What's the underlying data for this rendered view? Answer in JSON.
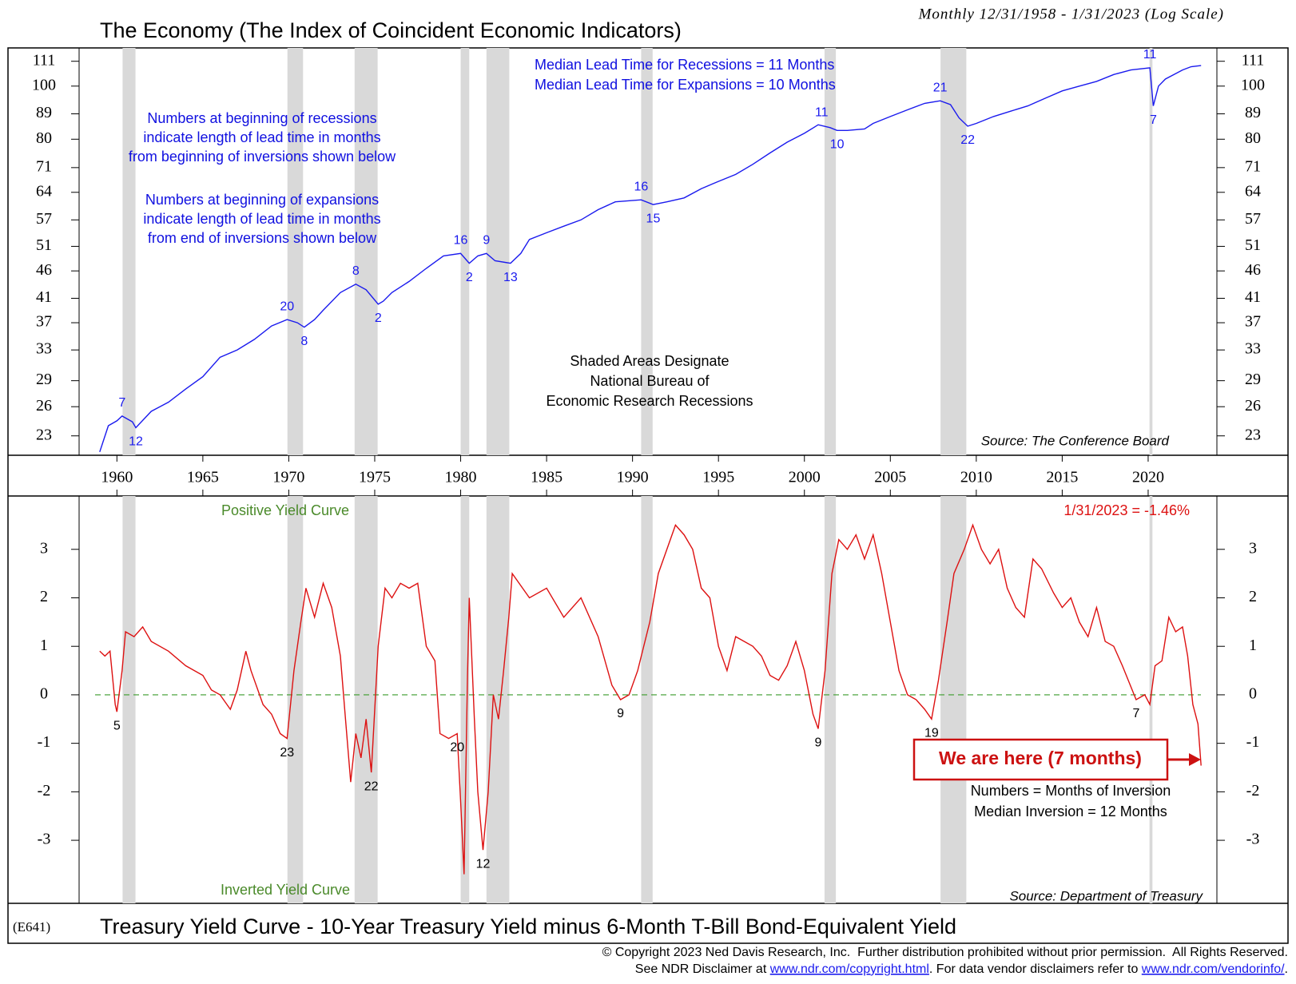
{
  "chart_data": [
    {
      "type": "line",
      "title": "The Economy (The Index of Coincident Economic Indicators)",
      "subtitle": "Monthly 12/31/1958 - 1/31/2023 (Log Scale)",
      "color": "#1a1aee",
      "log_scale": true,
      "x": [
        1959.0,
        1959.5,
        1960.0,
        1960.3,
        1960.9,
        1961.1,
        1962,
        1963,
        1964,
        1965,
        1966,
        1967,
        1968,
        1969,
        1969.9,
        1970.5,
        1970.9,
        1971.5,
        1972,
        1973,
        1973.9,
        1974.5,
        1975.2,
        1975.5,
        1976,
        1977,
        1978,
        1979,
        1980.0,
        1980.5,
        1981,
        1981.5,
        1982,
        1982.9,
        1983.5,
        1984,
        1985,
        1986,
        1987,
        1988,
        1989,
        1990.5,
        1991.2,
        1992,
        1993,
        1994,
        1995,
        1996,
        1997,
        1998,
        1999,
        2000,
        2000.8,
        2001.5,
        2001.9,
        2002.5,
        2003.5,
        2004,
        2005,
        2006,
        2007,
        2007.9,
        2008.5,
        2009.0,
        2009.5,
        2010,
        2011,
        2012,
        2013,
        2014,
        2015,
        2016,
        2017,
        2018,
        2019,
        2020.1,
        2020.3,
        2020.6,
        2021,
        2022,
        2022.5,
        2023.08
      ],
      "values": [
        21.5,
        24,
        24.5,
        25,
        24.4,
        23.8,
        25.5,
        26.5,
        28,
        29.5,
        32,
        33,
        34.5,
        36.5,
        37.5,
        37,
        36.3,
        37.5,
        39,
        42,
        43.5,
        42.5,
        40,
        40.5,
        42,
        44,
        46.5,
        49,
        49.5,
        47.5,
        49,
        49.5,
        48,
        47.5,
        49.5,
        52.5,
        54,
        55.5,
        57,
        59.5,
        61.5,
        62,
        60.8,
        61.5,
        62.5,
        65,
        67,
        69,
        72,
        75.5,
        79,
        82,
        85,
        84,
        83,
        83,
        83.5,
        85.5,
        88,
        90.5,
        93,
        94,
        92.5,
        87.5,
        84.5,
        85.5,
        88,
        90,
        92,
        95,
        98,
        100,
        102,
        105,
        107,
        108,
        92,
        100,
        103,
        107,
        108.5,
        109
      ],
      "xlim": [
        1957.8,
        2024
      ],
      "xticks": [
        1960,
        1965,
        1970,
        1975,
        1980,
        1985,
        1990,
        1995,
        2000,
        2005,
        2010,
        2015,
        2020
      ],
      "ylim": [
        21.2,
        117.4
      ],
      "yticks": [
        23,
        26,
        29,
        33,
        37,
        41,
        46,
        51,
        57,
        64,
        71,
        80,
        89,
        100,
        111
      ],
      "recessions": [
        [
          1960.33,
          1961.08
        ],
        [
          1969.92,
          1970.83
        ],
        [
          1973.83,
          1975.17
        ],
        [
          1980.0,
          1980.5
        ],
        [
          1981.5,
          1982.83
        ],
        [
          1990.5,
          1991.17
        ],
        [
          2001.17,
          2001.83
        ],
        [
          2007.92,
          2009.42
        ],
        [
          2020.08,
          2020.25
        ]
      ],
      "recession_color": "#d9d9d9",
      "annotations": [
        {
          "label": "7",
          "x": 1960.3,
          "pos": "above"
        },
        {
          "label": "12",
          "x": 1961.1,
          "pos": "below"
        },
        {
          "label": "20",
          "x": 1969.9,
          "pos": "above"
        },
        {
          "label": "8",
          "x": 1970.9,
          "pos": "below"
        },
        {
          "label": "8",
          "x": 1973.9,
          "pos": "above"
        },
        {
          "label": "2",
          "x": 1975.2,
          "pos": "below"
        },
        {
          "label": "16",
          "x": 1980.0,
          "pos": "above"
        },
        {
          "label": "2",
          "x": 1980.5,
          "pos": "below"
        },
        {
          "label": "9",
          "x": 1981.5,
          "pos": "above"
        },
        {
          "label": "13",
          "x": 1982.9,
          "pos": "below"
        },
        {
          "label": "16",
          "x": 1990.5,
          "pos": "above"
        },
        {
          "label": "15",
          "x": 1991.2,
          "pos": "below"
        },
        {
          "label": "11",
          "x": 2001.0,
          "pos": "above"
        },
        {
          "label": "10",
          "x": 2001.9,
          "pos": "below"
        },
        {
          "label": "21",
          "x": 2007.9,
          "pos": "above"
        },
        {
          "label": "22",
          "x": 2009.5,
          "pos": "below"
        },
        {
          "label": "11",
          "x": 2020.1,
          "pos": "above"
        },
        {
          "label": "7",
          "x": 2020.3,
          "pos": "below"
        }
      ],
      "median_notes": [
        "Median Lead Time for Recessions = 11 Months",
        "Median Lead Time for Expansions = 10 Months"
      ],
      "recession_note": [
        "Numbers at beginning of recessions",
        "indicate length of lead time in months",
        "from beginning of inversions shown below"
      ],
      "expansion_note": [
        "Numbers at beginning of expansions",
        "indicate length of lead time in months",
        "from end of inversions shown below"
      ],
      "shading_note": [
        "Shaded Areas Designate",
        "National Bureau of",
        "Economic Research Recessions"
      ],
      "source": "Source: The Conference Board"
    },
    {
      "type": "line",
      "title": "Treasury Yield Curve - 10-Year Treasury Yield minus 6-Month T-Bill Bond-Equivalent Yield",
      "color": "#dd1111",
      "x": [
        1959.0,
        1959.3,
        1959.6,
        1959.9,
        1960.0,
        1960.3,
        1960.5,
        1961,
        1961.5,
        1962,
        1963,
        1964,
        1965,
        1965.5,
        1966,
        1966.6,
        1967,
        1967.5,
        1967.8,
        1968.5,
        1969,
        1969.5,
        1969.9,
        1970.3,
        1970.7,
        1971,
        1971.5,
        1972,
        1972.5,
        1973,
        1973.3,
        1973.6,
        1973.9,
        1974.2,
        1974.5,
        1974.8,
        1975.2,
        1975.6,
        1976,
        1976.5,
        1977,
        1977.5,
        1978,
        1978.5,
        1978.8,
        1979.3,
        1979.8,
        1980.0,
        1980.2,
        1980.4,
        1980.5,
        1980.8,
        1981.0,
        1981.3,
        1981.6,
        1981.9,
        1982.2,
        1982.5,
        1982.8,
        1983,
        1984,
        1985,
        1986,
        1987,
        1988,
        1988.8,
        1989.3,
        1989.8,
        1990.3,
        1991,
        1991.5,
        1992.5,
        1993,
        1993.5,
        1994,
        1994.5,
        1995,
        1995.5,
        1996,
        1997,
        1997.5,
        1998,
        1998.5,
        1999,
        1999.5,
        2000,
        2000.5,
        2000.8,
        2001.2,
        2001.6,
        2002,
        2002.5,
        2003,
        2003.5,
        2004,
        2004.5,
        2005,
        2005.5,
        2006,
        2006.5,
        2007,
        2007.4,
        2007.8,
        2008.3,
        2008.7,
        2009.3,
        2009.8,
        2010.3,
        2010.8,
        2011.3,
        2011.8,
        2012.3,
        2012.8,
        2013.3,
        2013.8,
        2014.5,
        2015,
        2015.5,
        2016,
        2016.5,
        2017,
        2017.5,
        2018,
        2018.5,
        2019.3,
        2019.8,
        2020.1,
        2020.4,
        2020.8,
        2021.2,
        2021.6,
        2022.0,
        2022.3,
        2022.6,
        2022.9,
        2023.08
      ],
      "values": [
        0.9,
        0.8,
        0.9,
        -0.2,
        -0.35,
        0.5,
        1.3,
        1.2,
        1.4,
        1.1,
        0.9,
        0.6,
        0.4,
        0.1,
        0.0,
        -0.3,
        0.1,
        0.9,
        0.5,
        -0.2,
        -0.4,
        -0.8,
        -0.9,
        0.5,
        1.5,
        2.2,
        1.6,
        2.3,
        1.8,
        0.8,
        -0.5,
        -1.8,
        -0.8,
        -1.3,
        -0.5,
        -1.6,
        1.0,
        2.2,
        2.0,
        2.3,
        2.2,
        2.3,
        1.0,
        0.7,
        -0.8,
        -0.9,
        -0.8,
        -2.2,
        -3.7,
        0.4,
        2.0,
        -0.5,
        -2.0,
        -3.2,
        -2.0,
        0.0,
        -0.5,
        0.5,
        1.6,
        2.5,
        2.0,
        2.2,
        1.6,
        2.0,
        1.2,
        0.2,
        -0.1,
        0.0,
        0.5,
        1.5,
        2.5,
        3.5,
        3.3,
        3.0,
        2.2,
        2.0,
        1.0,
        0.5,
        1.2,
        1.0,
        0.8,
        0.4,
        0.3,
        0.6,
        1.1,
        0.5,
        -0.4,
        -0.7,
        0.5,
        2.5,
        3.2,
        3.0,
        3.3,
        2.8,
        3.3,
        2.5,
        1.5,
        0.5,
        0.0,
        -0.1,
        -0.3,
        -0.5,
        0.3,
        1.5,
        2.5,
        3.0,
        3.5,
        3.0,
        2.7,
        3.0,
        2.2,
        1.8,
        1.6,
        2.8,
        2.6,
        2.1,
        1.8,
        2.0,
        1.5,
        1.2,
        1.8,
        1.1,
        1.0,
        0.6,
        -0.1,
        0.0,
        -0.2,
        0.6,
        0.7,
        1.6,
        1.3,
        1.4,
        0.8,
        -0.2,
        -0.6,
        -1.46
      ],
      "xlim": [
        1957.8,
        2024
      ],
      "ylim": [
        -4.3,
        4.1
      ],
      "yticks": [
        -3,
        -2,
        -1,
        0,
        1,
        2,
        3
      ],
      "hline": 0,
      "hline_color": "#3a9a2a",
      "annotations": [
        {
          "label": "5",
          "x": 1960.0,
          "pos": "below"
        },
        {
          "label": "23",
          "x": 1969.9,
          "pos": "below"
        },
        {
          "label": "22",
          "x": 1974.8,
          "pos": "below"
        },
        {
          "label": "20",
          "x": 1979.8,
          "pos": "below"
        },
        {
          "label": "12",
          "x": 1981.3,
          "pos": "below"
        },
        {
          "label": "9",
          "x": 1989.3,
          "pos": "below"
        },
        {
          "label": "9",
          "x": 2000.8,
          "pos": "below"
        },
        {
          "label": "19",
          "x": 2007.4,
          "pos": "below"
        },
        {
          "label": "7",
          "x": 2019.3,
          "pos": "below"
        }
      ],
      "positive_label": "Positive Yield Curve",
      "inverted_label": "Inverted Yield Curve",
      "last_value_label": "1/31/2023 = -1.46%",
      "callout": "We are here (7 months)",
      "inversion_notes": [
        "Numbers = Months of Inversion",
        "Median Inversion = 12 Months"
      ],
      "source": "Source: Department of Treasury"
    }
  ],
  "code": "(E641)",
  "footer": {
    "copyright": "© Copyright 2023 Ned Davis Research, Inc.  Further distribution prohibited without prior permission.  All Rights Reserved.",
    "disclaimer": [
      "See NDR Disclaimer at ",
      "www.ndr.com/copyright.html",
      ". For data vendor disclaimers refer to ",
      "www.ndr.com/vendorinfo/",
      "."
    ]
  }
}
